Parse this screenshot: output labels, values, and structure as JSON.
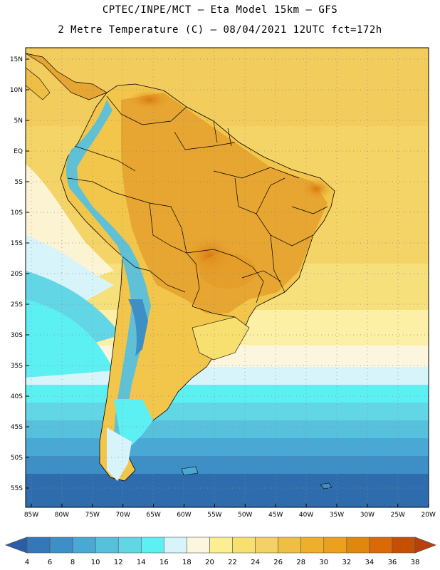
{
  "header": {
    "line1": "CPTEC/INPE/MCT —  Eta Model 15km — GFS",
    "line2": "2 Metre Temperature (C) — 08/04/2021 12UTC fct=172h"
  },
  "map": {
    "variable": "2 Metre Temperature",
    "unit": "C",
    "lon_range": [
      -86,
      -20
    ],
    "lat_range": [
      -58,
      16.5
    ],
    "lat_ticks": [
      "15N",
      "10N",
      "5N",
      "EQ",
      "5S",
      "10S",
      "15S",
      "20S",
      "25S",
      "30S",
      "35S",
      "40S",
      "45S",
      "50S",
      "55S"
    ],
    "lon_ticks": [
      "85W",
      "80W",
      "75W",
      "70W",
      "65W",
      "60W",
      "55W",
      "50W",
      "45W",
      "40W",
      "35W",
      "30W",
      "25W",
      "20W"
    ],
    "ocean_color_tropical": "#f3d166",
    "land_color_hot": "#e7a531"
  },
  "colorbar": {
    "labels": [
      "4",
      "6",
      "8",
      "10",
      "12",
      "14",
      "16",
      "18",
      "20",
      "22",
      "24",
      "26",
      "28",
      "30",
      "32",
      "34",
      "36",
      "38"
    ],
    "colors": [
      "#2a5ea5",
      "#3478b7",
      "#3d8fc6",
      "#49a8d4",
      "#57c0dd",
      "#63d6e6",
      "#5cf0f2",
      "#d8f4fb",
      "#fdf6de",
      "#fbee93",
      "#f8e070",
      "#f3d166",
      "#efbe45",
      "#eeaf2a",
      "#eca11e",
      "#e0880e",
      "#d96a07",
      "#c55004",
      "#b8400c"
    ]
  }
}
